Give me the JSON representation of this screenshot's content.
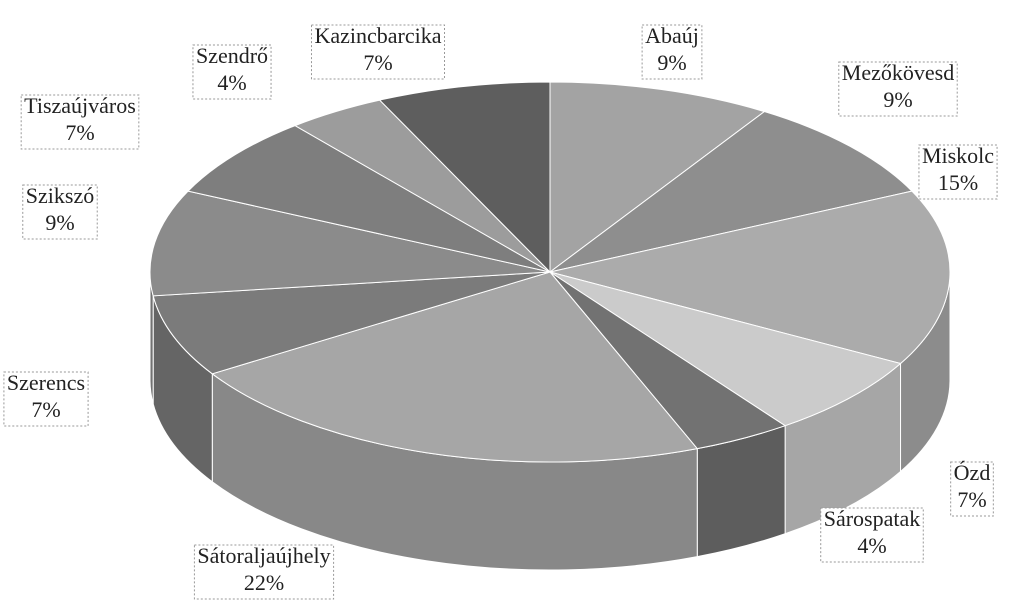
{
  "chart_data": {
    "type": "pie3d",
    "categories": [
      "Abaúj",
      "Mezőkövesd",
      "Miskolc",
      "Ózd",
      "Sárospatak",
      "Sátoraljaújhely",
      "Szerencs",
      "Szikszó",
      "Tiszaújváros",
      "Szendrő",
      "Kazincbarcika"
    ],
    "values": [
      9,
      9,
      15,
      7,
      4,
      22,
      7,
      9,
      7,
      4,
      7
    ],
    "value_labels": [
      "9%",
      "9%",
      "15%",
      "7%",
      "4%",
      "22%",
      "7%",
      "9%",
      "7%",
      "4%",
      "7%"
    ],
    "colors": [
      "#a3a3a3",
      "#8e8e8e",
      "#ababab",
      "#cbcbcb",
      "#727272",
      "#a6a6a6",
      "#7b7b7b",
      "#8b8b8b",
      "#7e7e7e",
      "#9c9c9c",
      "#5e5e5e"
    ]
  }
}
